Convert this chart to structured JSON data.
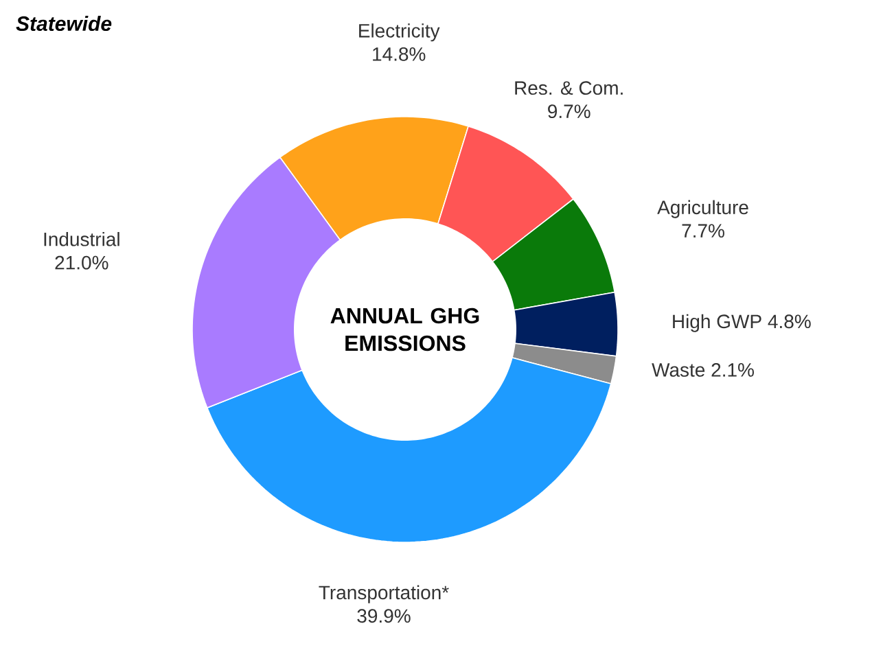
{
  "chart_data": {
    "type": "donut",
    "title": "Statewide",
    "categories": [
      "Electricity",
      "Res. & Com.",
      "Agriculture",
      "High GWP",
      "Waste",
      "Transportation*",
      "Industrial"
    ],
    "values": [
      14.8,
      9.7,
      7.7,
      4.8,
      2.1,
      39.9,
      21.0
    ],
    "value_labels": [
      "14.8%",
      "9.7%",
      "7.7%",
      "4.8%",
      "2.1%",
      "39.9%",
      "21.0%"
    ],
    "colors": [
      "#ffa21a",
      "#ff5555",
      "#0a7a0a",
      "#001f5f",
      "#8c8c8c",
      "#1e9bff",
      "#a97bff"
    ],
    "annotations": [
      "ANNUAL GHG EMISSIONS"
    ]
  }
}
